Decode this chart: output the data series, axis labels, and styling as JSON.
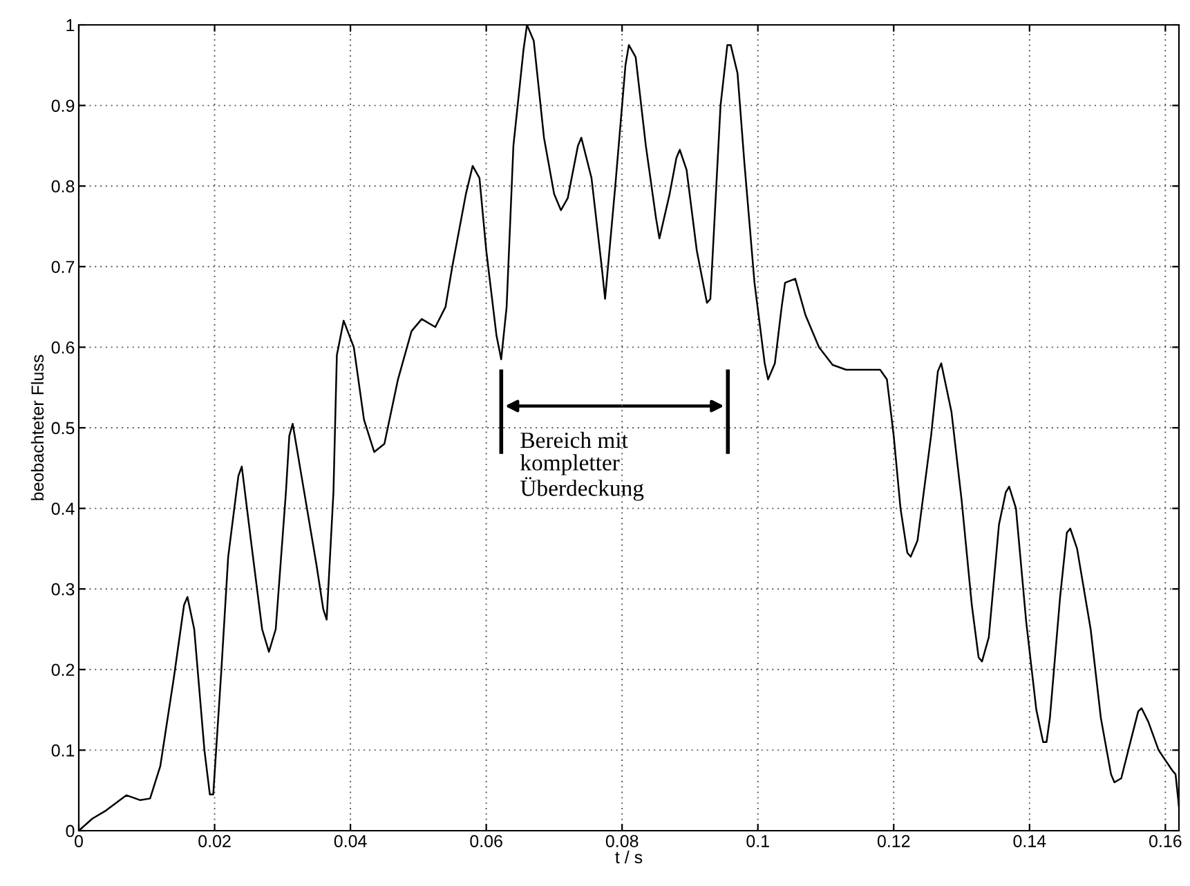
{
  "chart_data": {
    "type": "line",
    "xlabel": "t / s",
    "ylabel": "beobachteter Fluss",
    "xlim": [
      0,
      0.162
    ],
    "ylim": [
      0,
      1
    ],
    "xticks": [
      0,
      0.02,
      0.04,
      0.06,
      0.08,
      0.1,
      0.12,
      0.14,
      0.16
    ],
    "yticks": [
      0,
      0.1,
      0.2,
      0.3,
      0.4,
      0.5,
      0.6,
      0.7,
      0.8,
      0.9,
      1
    ],
    "grid": true,
    "series": [
      {
        "color": "#000000",
        "x": [
          0,
          0.002,
          0.004,
          0.007,
          0.009,
          0.0105,
          0.012,
          0.014,
          0.0155,
          0.016,
          0.017,
          0.0185,
          0.0193,
          0.0198,
          0.021,
          0.022,
          0.0235,
          0.024,
          0.0255,
          0.027,
          0.028,
          0.029,
          0.0305,
          0.031,
          0.0315,
          0.033,
          0.035,
          0.036,
          0.0365,
          0.0375,
          0.038,
          0.039,
          0.0405,
          0.042,
          0.0435,
          0.045,
          0.047,
          0.049,
          0.0505,
          0.0525,
          0.054,
          0.055,
          0.057,
          0.058,
          0.059,
          0.06,
          0.0615,
          0.0622,
          0.063,
          0.064,
          0.0655,
          0.066,
          0.067,
          0.0685,
          0.07,
          0.071,
          0.072,
          0.0735,
          0.074,
          0.0755,
          0.077,
          0.0775,
          0.079,
          0.0805,
          0.081,
          0.082,
          0.0835,
          0.085,
          0.0855,
          0.087,
          0.088,
          0.0885,
          0.0895,
          0.091,
          0.0925,
          0.093,
          0.0945,
          0.0955,
          0.096,
          0.097,
          0.098,
          0.0995,
          0.101,
          0.1015,
          0.1025,
          0.1035,
          0.104,
          0.1055,
          0.107,
          0.109,
          0.111,
          0.113,
          0.116,
          0.118,
          0.119,
          0.12,
          0.121,
          0.122,
          0.1225,
          0.1235,
          0.1255,
          0.1265,
          0.127,
          0.1285,
          0.13,
          0.1315,
          0.1325,
          0.133,
          0.134,
          0.1355,
          0.1365,
          0.137,
          0.138,
          0.1395,
          0.141,
          0.142,
          0.1425,
          0.143,
          0.1445,
          0.1455,
          0.146,
          0.147,
          0.149,
          0.1505,
          0.152,
          0.1525,
          0.1535,
          0.155,
          0.156,
          0.1565,
          0.1575,
          0.159,
          0.161,
          0.1615,
          0.162
        ],
        "values": [
          0,
          0.015,
          0.025,
          0.044,
          0.038,
          0.04,
          0.08,
          0.19,
          0.28,
          0.29,
          0.25,
          0.1,
          0.045,
          0.045,
          0.2,
          0.34,
          0.44,
          0.452,
          0.35,
          0.25,
          0.222,
          0.25,
          0.42,
          0.49,
          0.505,
          0.43,
          0.33,
          0.275,
          0.262,
          0.42,
          0.59,
          0.633,
          0.6,
          0.51,
          0.47,
          0.48,
          0.56,
          0.62,
          0.635,
          0.625,
          0.65,
          0.7,
          0.79,
          0.825,
          0.81,
          0.72,
          0.615,
          0.585,
          0.65,
          0.85,
          0.97,
          1.0,
          0.98,
          0.86,
          0.79,
          0.77,
          0.785,
          0.85,
          0.86,
          0.81,
          0.7,
          0.66,
          0.8,
          0.95,
          0.975,
          0.96,
          0.85,
          0.76,
          0.735,
          0.79,
          0.835,
          0.845,
          0.82,
          0.72,
          0.655,
          0.66,
          0.9,
          0.975,
          0.975,
          0.94,
          0.83,
          0.68,
          0.58,
          0.56,
          0.58,
          0.65,
          0.68,
          0.685,
          0.64,
          0.6,
          0.578,
          0.572,
          0.572,
          0.572,
          0.56,
          0.49,
          0.4,
          0.345,
          0.34,
          0.36,
          0.49,
          0.57,
          0.58,
          0.52,
          0.41,
          0.28,
          0.215,
          0.21,
          0.24,
          0.38,
          0.42,
          0.427,
          0.4,
          0.26,
          0.15,
          0.11,
          0.11,
          0.14,
          0.29,
          0.37,
          0.375,
          0.35,
          0.25,
          0.14,
          0.07,
          0.06,
          0.065,
          0.115,
          0.148,
          0.152,
          0.135,
          0.1,
          0.075,
          0.07,
          0.03
        ]
      }
    ],
    "annotations": [
      "Bereich mit\nkompletter\nÜberdeckung"
    ]
  }
}
